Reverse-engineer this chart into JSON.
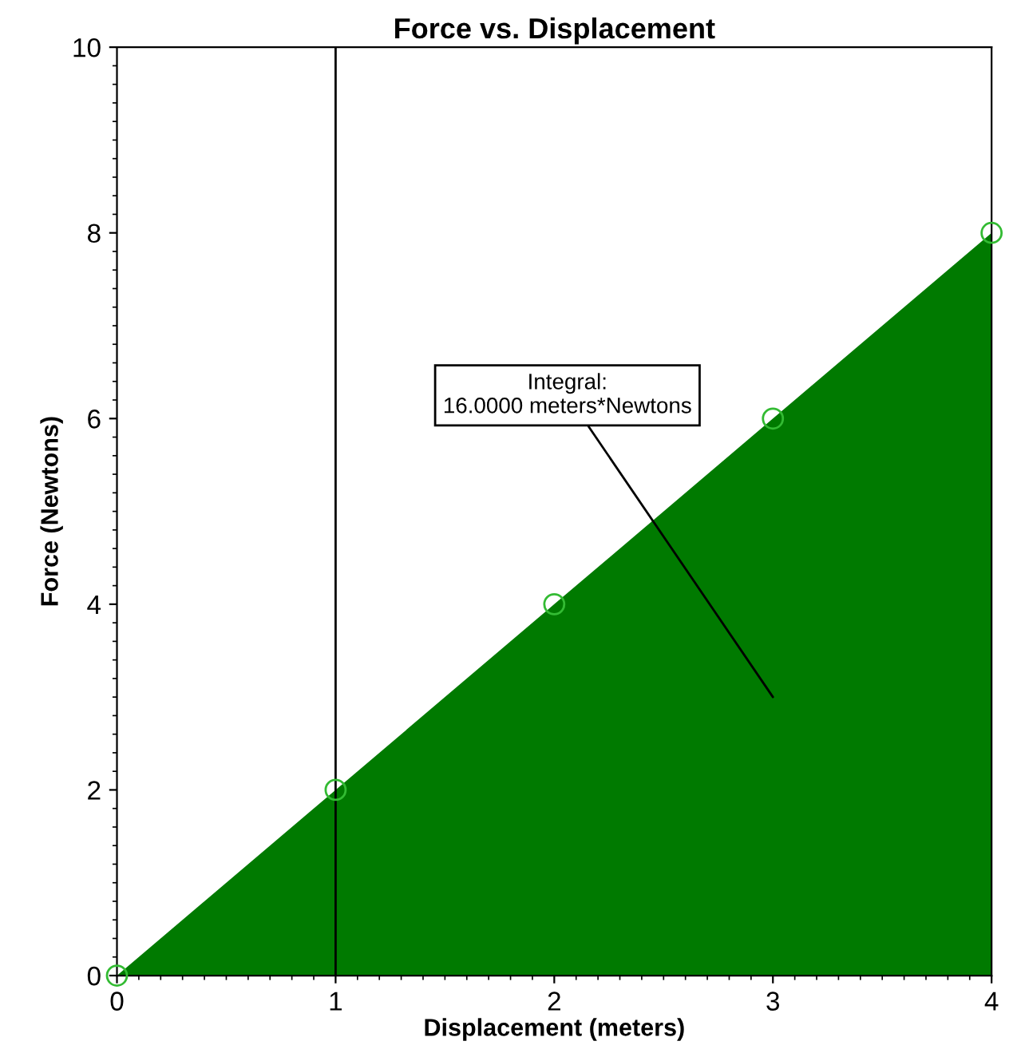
{
  "chart_data": {
    "type": "area",
    "title": "Force vs. Displacement",
    "xlabel": "Displacement (meters)",
    "ylabel": "Force (Newtons)",
    "x": [
      0,
      1,
      2,
      3,
      4
    ],
    "series": [
      {
        "color": "#007a00",
        "values": [
          0,
          2,
          4,
          6,
          8
        ]
      }
    ],
    "marker": "circle",
    "xlim": [
      0,
      4
    ],
    "ylim": [
      0,
      10
    ],
    "xticks": [
      0,
      1,
      2,
      3,
      4
    ],
    "yticks": [
      0,
      2,
      4,
      6,
      8,
      10
    ],
    "grid": false,
    "legend": false,
    "ref_lines": [
      {
        "axis": "x",
        "value": 1,
        "color": "#000000"
      }
    ],
    "annotations": [
      "Integral:\n16.0000 meters*Newtons"
    ]
  }
}
